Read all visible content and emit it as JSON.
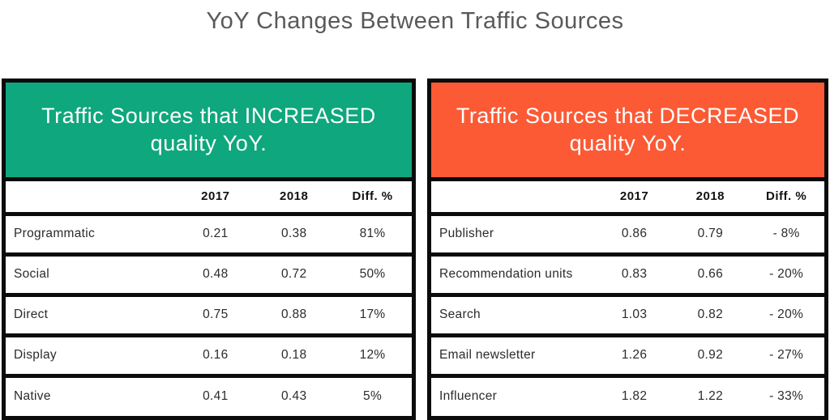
{
  "title": "YoY Changes Between Traffic Sources",
  "colors": {
    "green": "#0FA77D",
    "orange": "#FB5A35",
    "title-gray": "#58595B",
    "border-black": "#0B0B0B"
  },
  "chart_data": [
    {
      "type": "table",
      "name": "increased",
      "title": "Traffic Sources that INCREASED quality YoY.",
      "header_color": "#0FA77D",
      "columns": [
        "",
        "2017",
        "2018",
        "Diff. %"
      ],
      "rows": [
        [
          "Programmatic",
          "0.21",
          "0.38",
          "81%"
        ],
        [
          "Social",
          "0.48",
          "0.72",
          "50%"
        ],
        [
          "Direct",
          "0.75",
          "0.88",
          "17%"
        ],
        [
          "Display",
          "0.16",
          "0.18",
          "12%"
        ],
        [
          "Native",
          "0.41",
          "0.43",
          "5%"
        ]
      ]
    },
    {
      "type": "table",
      "name": "decreased",
      "title": "Traffic Sources that DECREASED quality YoY.",
      "header_color": "#FB5A35",
      "columns": [
        "",
        "2017",
        "2018",
        "Diff. %"
      ],
      "rows": [
        [
          "Publisher",
          "0.86",
          "0.79",
          "- 8%"
        ],
        [
          "Recommendation units",
          "0.83",
          "0.66",
          "- 20%"
        ],
        [
          "Search",
          "1.03",
          "0.82",
          "- 20%"
        ],
        [
          "Email newsletter",
          "1.26",
          "0.92",
          "- 27%"
        ],
        [
          "Influencer",
          "1.82",
          "1.22",
          "- 33%"
        ]
      ]
    }
  ]
}
